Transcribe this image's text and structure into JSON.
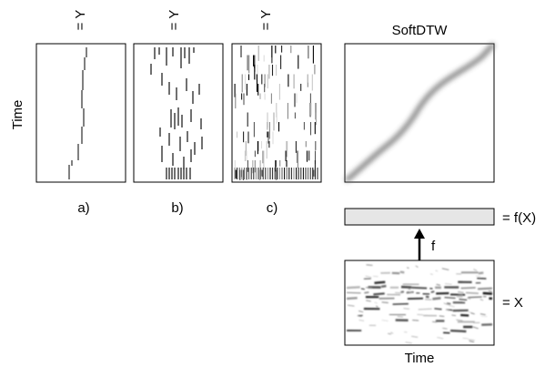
{
  "figure": {
    "time_label_left": "Time",
    "time_label_bottom": "Time",
    "y_label": "= Y",
    "panels": [
      {
        "caption": "a)"
      },
      {
        "caption": "b)"
      },
      {
        "caption": "c)"
      }
    ],
    "softdtw_title": "SoftDTW",
    "fx_label": "= f(X)",
    "f_label": "f",
    "x_label": "= X"
  }
}
